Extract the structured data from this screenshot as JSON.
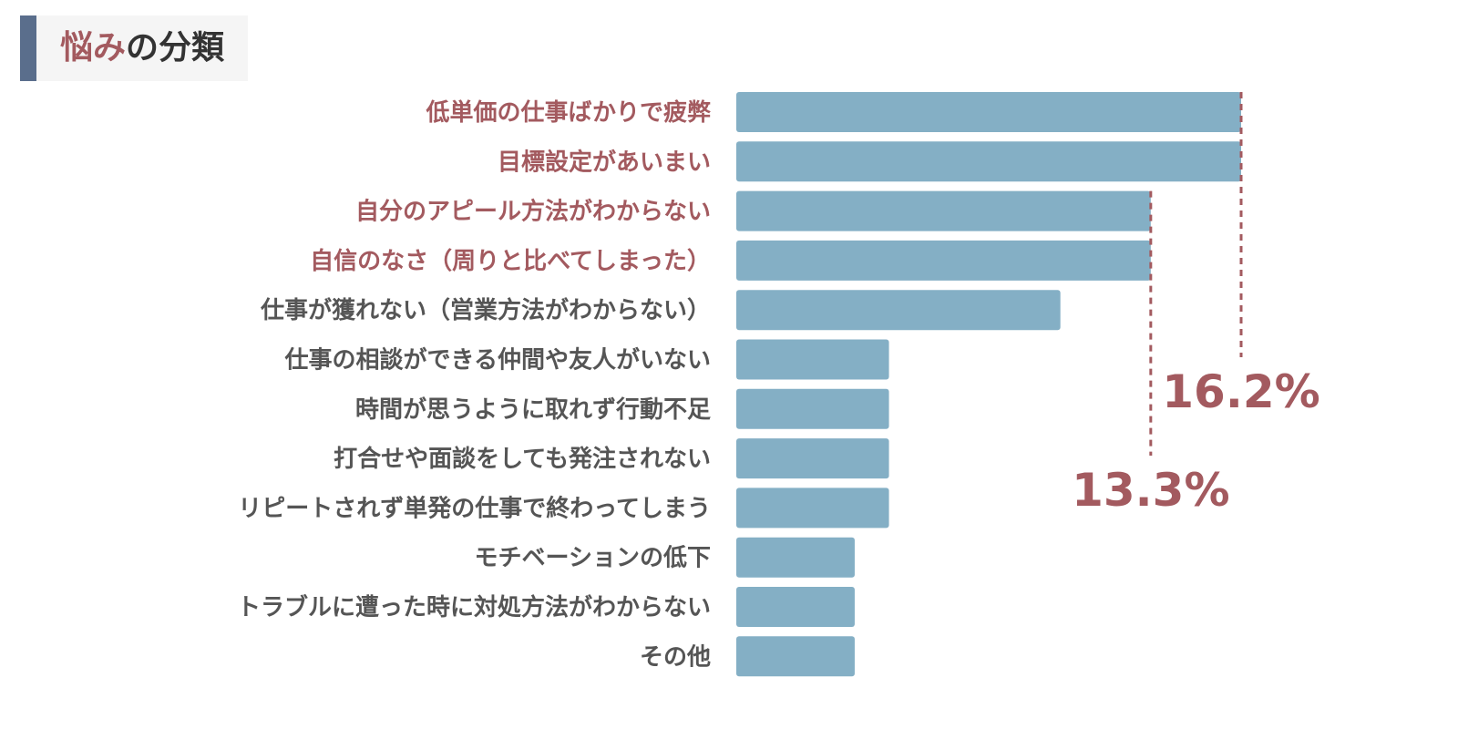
{
  "title": {
    "highlight": "悩み",
    "rest": "の分類"
  },
  "colors": {
    "accent": "#a35a5f",
    "text": "#555555",
    "bar": "#84afc5",
    "title_bar": "#5a6e8c",
    "title_bg": "#f5f5f5"
  },
  "chart_data": {
    "type": "bar",
    "orientation": "horizontal",
    "categories": [
      "低単価の仕事ばかりで疲弊",
      "目標設定があいまい",
      "自分のアピール方法がわからない",
      "自信のなさ（周りと比べてしまった）",
      "仕事が獲れない（営業方法がわからない）",
      "仕事の相談ができる仲間や友人がいない",
      "時間が思うように取れず行動不足",
      "打合せや面談をしても発注されない",
      "リピートされず単発の仕事で終わってしまう",
      "モチベーションの低下",
      "トラブルに遭った時に対処方法がわからない",
      "その他"
    ],
    "values": [
      16.2,
      16.2,
      13.3,
      13.3,
      10.4,
      4.9,
      4.9,
      4.9,
      4.9,
      3.8,
      3.8,
      3.8
    ],
    "highlighted": [
      true,
      true,
      true,
      true,
      false,
      false,
      false,
      false,
      false,
      false,
      false,
      false
    ],
    "callouts": [
      {
        "label": "16.2%",
        "value": 16.2
      },
      {
        "label": "13.3%",
        "value": 13.3
      }
    ],
    "xlim": [
      0,
      16.2
    ],
    "grid": false,
    "legend": "none"
  }
}
